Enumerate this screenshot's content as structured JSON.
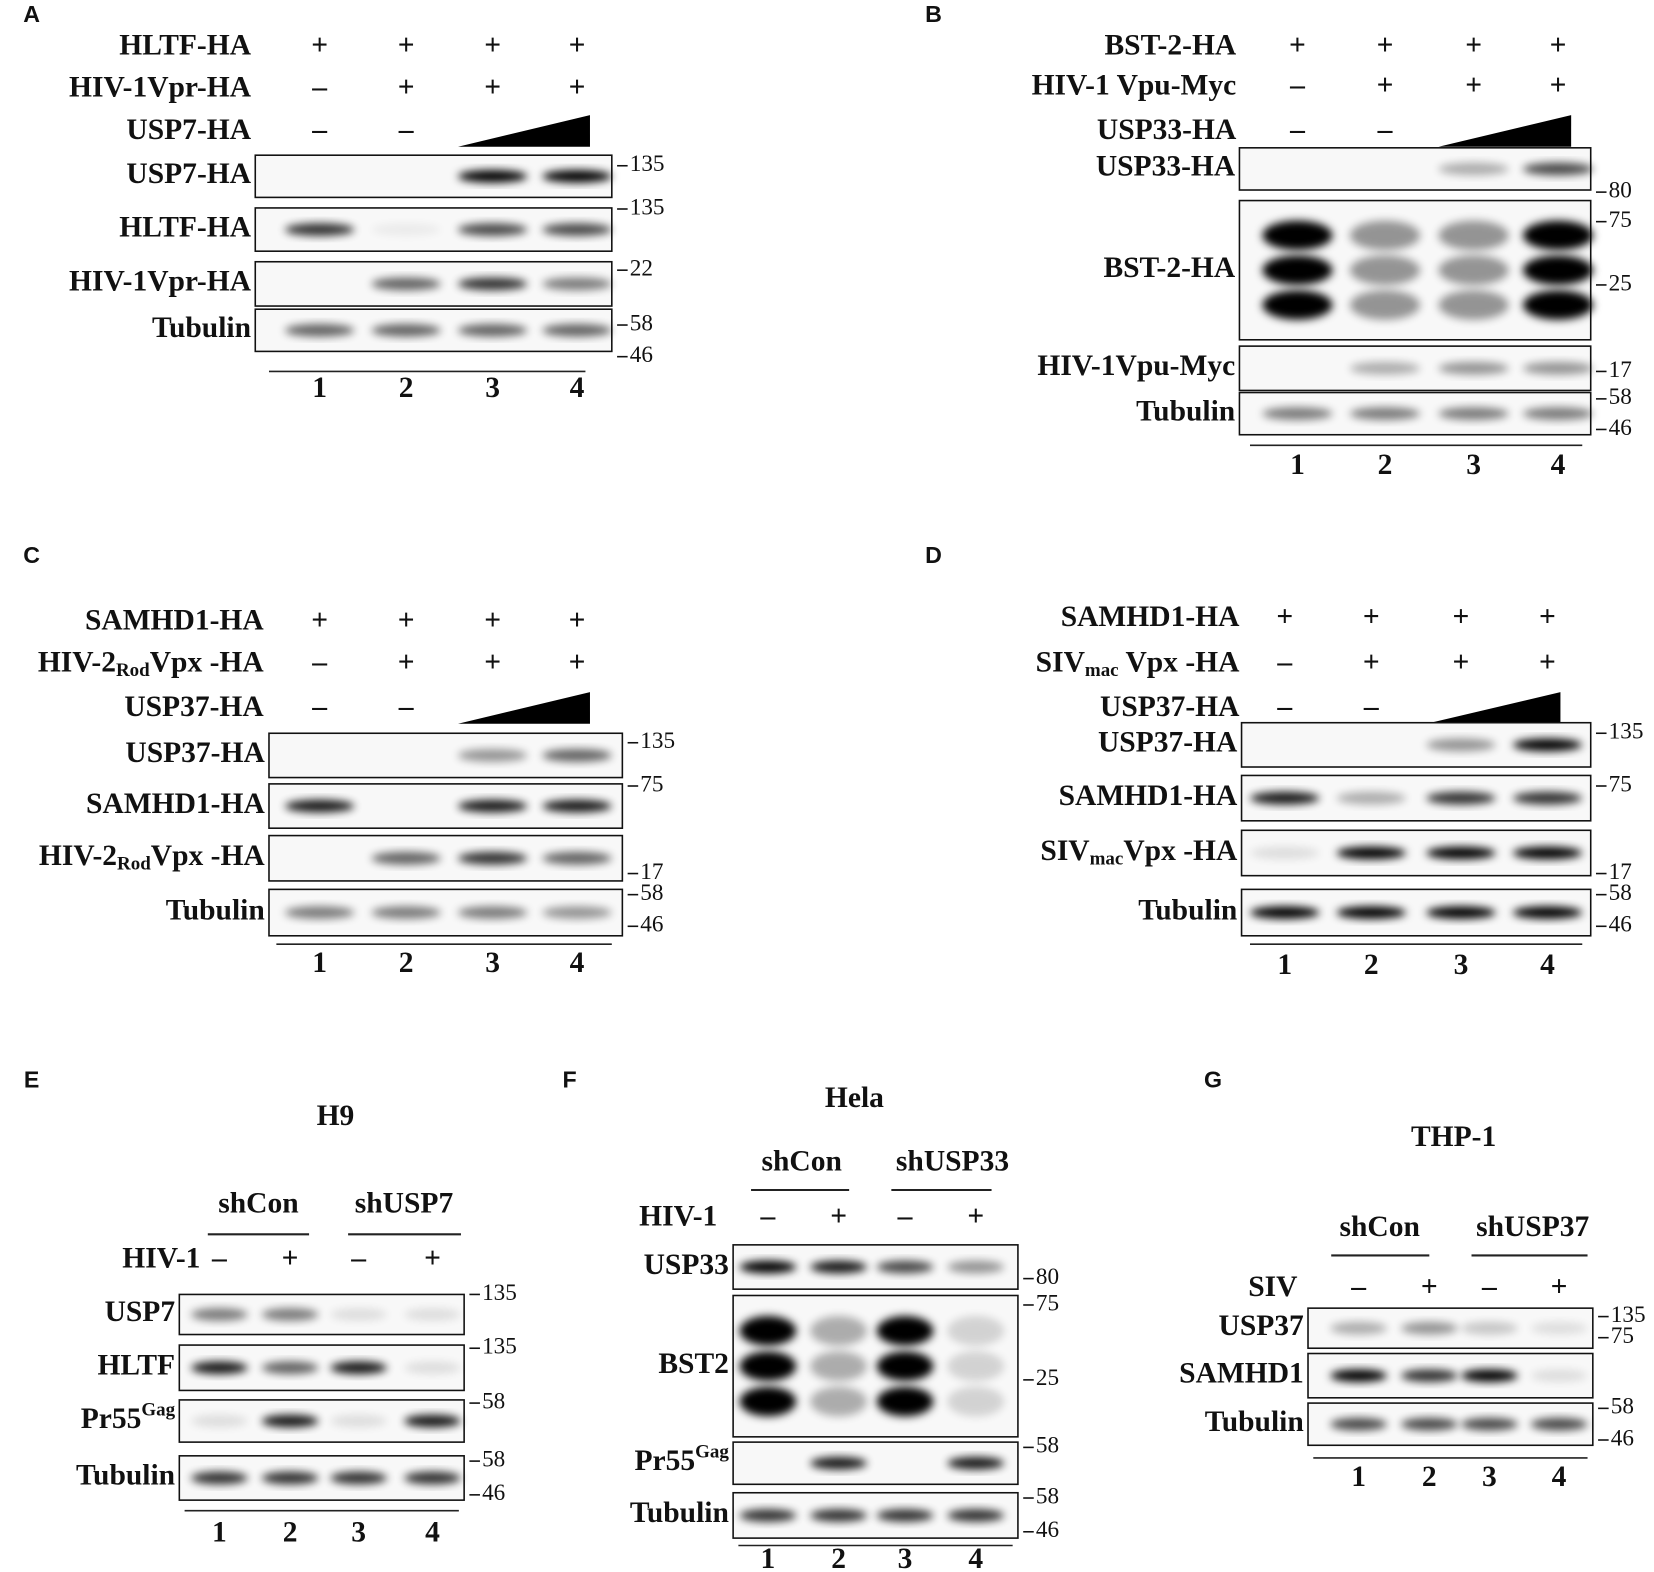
{
  "panels": [
    {
      "letter": "A",
      "rows": [
        {
          "label": "HLTF-HA",
          "values": [
            "+",
            "+",
            "+",
            "+"
          ]
        },
        {
          "label": "HIV-1Vpr-HA",
          "values": [
            "–",
            "+",
            "+",
            "+"
          ]
        },
        {
          "label": "USP7-HA",
          "values": [
            "–",
            "–"
          ]
        }
      ],
      "blots": [
        {
          "label": "USP7-HA"
        },
        {
          "label": "HLTF-HA"
        },
        {
          "label": "HIV-1Vpr-HA"
        },
        {
          "label": "Tubulin"
        }
      ],
      "markers": [
        135,
        135,
        22,
        58,
        46
      ],
      "lanes": [
        1,
        2,
        3,
        4
      ]
    },
    {
      "letter": "B",
      "rows": [
        {
          "label": "BST-2-HA",
          "values": [
            "+",
            "+",
            "+",
            "+"
          ]
        },
        {
          "label": "HIV-1 Vpu-Myc",
          "values": [
            "–",
            "+",
            "+",
            "+"
          ]
        },
        {
          "label": "USP33-HA",
          "values": [
            "–",
            "–"
          ]
        }
      ],
      "blots": [
        {
          "label": "USP33-HA"
        },
        {
          "label": "BST-2-HA"
        },
        {
          "label": "HIV-1Vpu-Myc"
        },
        {
          "label": "Tubulin"
        }
      ],
      "markers": [
        80,
        75,
        25,
        17,
        58,
        46
      ],
      "lanes": [
        1,
        2,
        3,
        4
      ]
    },
    {
      "letter": "C",
      "rows": [
        {
          "label": "SAMHD1-HA",
          "values": [
            "+",
            "+",
            "+",
            "+"
          ]
        },
        {
          "label": [
            "HIV-2",
            {
              "sub": "Rod"
            },
            "Vpx -HA"
          ],
          "values": [
            "–",
            "+",
            "+",
            "+"
          ]
        },
        {
          "label": "USP37-HA",
          "values": [
            "–",
            "–"
          ]
        }
      ],
      "blots": [
        {
          "label": "USP37-HA"
        },
        {
          "label": "SAMHD1-HA"
        },
        {
          "label": [
            "HIV-2",
            {
              "sub": "Rod"
            },
            "Vpx -HA"
          ]
        },
        {
          "label": "Tubulin"
        }
      ],
      "markers": [
        135,
        75,
        17,
        58,
        46
      ],
      "lanes": [
        1,
        2,
        3,
        4
      ]
    },
    {
      "letter": "D",
      "rows": [
        {
          "label": "SAMHD1-HA",
          "values": [
            "+",
            "+",
            "+",
            "+"
          ]
        },
        {
          "label": [
            "SIV",
            {
              "sub": "mac"
            },
            " Vpx -HA"
          ],
          "values": [
            "–",
            "+",
            "+",
            "+"
          ]
        },
        {
          "label": "USP37-HA",
          "values": [
            "–",
            "–"
          ]
        }
      ],
      "blots": [
        {
          "label": "USP37-HA"
        },
        {
          "label": "SAMHD1-HA"
        },
        {
          "label": [
            "SIV",
            {
              "sub": "mac"
            },
            "Vpx -HA"
          ]
        },
        {
          "label": "Tubulin"
        }
      ],
      "markers": [
        135,
        75,
        17,
        58,
        46
      ],
      "lanes": [
        1,
        2,
        3,
        4
      ]
    },
    {
      "letter": "E",
      "title": "H9",
      "groups": [
        "shCon",
        "shUSP7"
      ],
      "rows": [
        {
          "label": "HIV-1",
          "values": [
            "–",
            "+",
            "–",
            "+"
          ]
        }
      ],
      "blots": [
        {
          "label": "USP7"
        },
        {
          "label": "HLTF"
        },
        {
          "label": [
            "Pr55",
            {
              "sup": "Gag"
            }
          ]
        },
        {
          "label": "Tubulin"
        }
      ],
      "markers": [
        135,
        135,
        58,
        58,
        46
      ],
      "lanes": [
        1,
        2,
        3,
        4
      ]
    },
    {
      "letter": "F",
      "title": "Hela",
      "groups": [
        "shCon",
        "shUSP33"
      ],
      "rows": [
        {
          "label": "HIV-1",
          "values": [
            "–",
            "+",
            "–",
            "+"
          ]
        }
      ],
      "blots": [
        {
          "label": "USP33"
        },
        {
          "label": "BST2"
        },
        {
          "label": [
            "Pr55",
            {
              "sup": "Gag"
            }
          ]
        },
        {
          "label": "Tubulin"
        }
      ],
      "markers": [
        80,
        75,
        25,
        58,
        58,
        46
      ],
      "lanes": [
        1,
        2,
        3,
        4
      ]
    },
    {
      "letter": "G",
      "title": "THP-1",
      "groups": [
        "shCon",
        "shUSP37"
      ],
      "rows": [
        {
          "label": "SIV",
          "values": [
            "–",
            "+",
            "–",
            "+"
          ]
        }
      ],
      "blots": [
        {
          "label": "USP37"
        },
        {
          "label": "SAMHD1"
        },
        {
          "label": "Tubulin"
        }
      ],
      "markers": [
        135,
        75,
        58,
        46
      ],
      "lanes": [
        1,
        2,
        3,
        4
      ]
    }
  ]
}
